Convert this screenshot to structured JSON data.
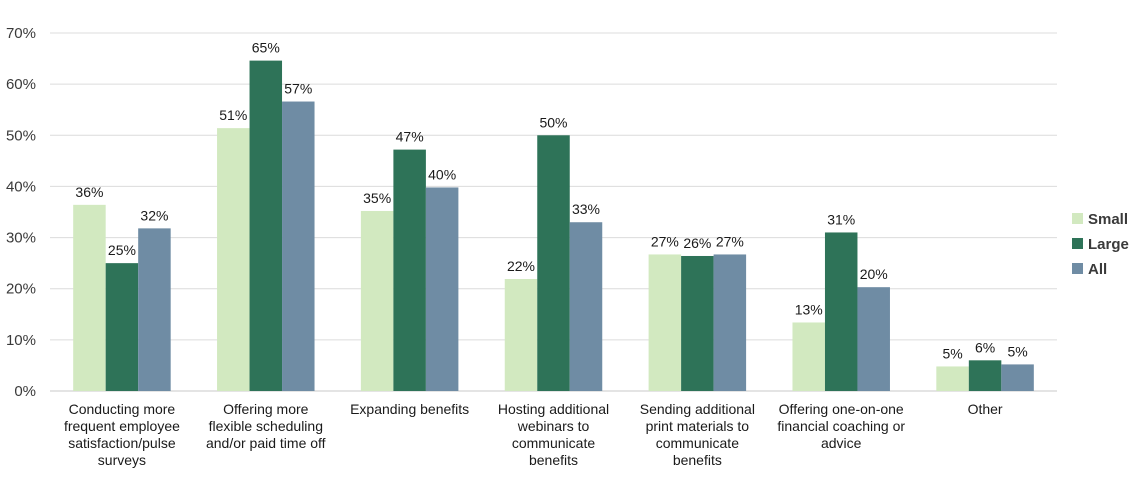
{
  "chart_data": {
    "type": "bar",
    "categories": [
      [
        "Conducting more",
        "frequent employee",
        "satisfaction/pulse",
        "surveys"
      ],
      [
        "Offering more",
        "flexible scheduling",
        "and/or paid time off"
      ],
      [
        "Expanding benefits"
      ],
      [
        "Hosting additional",
        "webinars to",
        "communicate",
        "benefits"
      ],
      [
        "Sending additional",
        "print materials to",
        "communicate",
        "benefits"
      ],
      [
        "Offering one-on-one",
        "financial coaching or",
        "advice"
      ],
      [
        "Other"
      ]
    ],
    "series": [
      {
        "name": "Small",
        "color": "#d2e9c0",
        "values": [
          36.4,
          51.4,
          35.2,
          21.9,
          26.7,
          13.4,
          4.8
        ],
        "labels": [
          "36%",
          "51%",
          "35%",
          "22%",
          "27%",
          "13%",
          "5%"
        ]
      },
      {
        "name": "Large",
        "color": "#2e7358",
        "values": [
          25.0,
          64.6,
          47.2,
          50.0,
          26.4,
          31.0,
          6.0
        ],
        "labels": [
          "25%",
          "65%",
          "47%",
          "50%",
          "26%",
          "31%",
          "6%"
        ]
      },
      {
        "name": "All",
        "color": "#6f8ca4",
        "values": [
          31.8,
          56.6,
          39.8,
          33.0,
          26.7,
          20.3,
          5.2
        ],
        "labels": [
          "32%",
          "57%",
          "40%",
          "33%",
          "27%",
          "20%",
          "5%"
        ]
      }
    ],
    "yticks": [
      "0%",
      "10%",
      "20%",
      "30%",
      "40%",
      "50%",
      "60%",
      "70%"
    ],
    "ylim": [
      0,
      70
    ],
    "grid": true,
    "legend_position": "right"
  }
}
